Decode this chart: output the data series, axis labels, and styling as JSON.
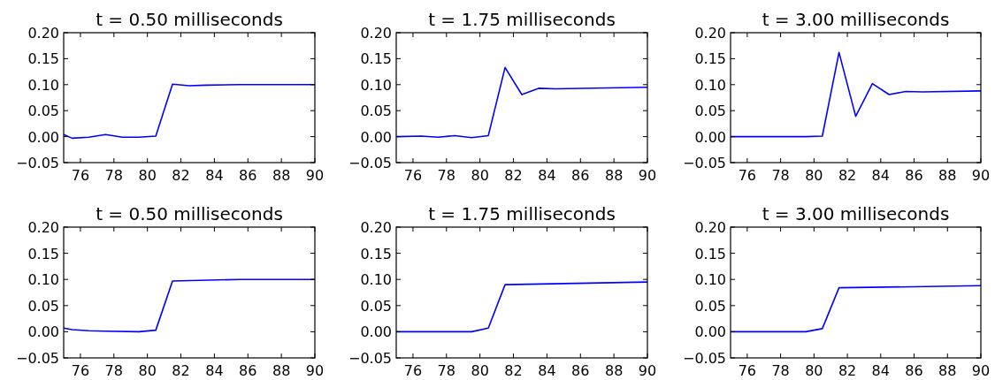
{
  "chart_data": [
    {
      "type": "line",
      "title": "t = 0.50 milliseconds",
      "x": [
        75,
        75.5,
        76.5,
        77.5,
        78.5,
        79.5,
        80.5,
        81.5,
        82.5,
        83.5,
        85.5,
        90
      ],
      "series": [
        {
          "color": "#0000ff",
          "values": [
            0.004,
            -0.003,
            -0.001,
            0.004,
            -0.001,
            -0.001,
            0.001,
            0.101,
            0.098,
            0.099,
            0.1,
            0.1
          ]
        }
      ],
      "xlim": [
        75,
        90
      ],
      "ylim": [
        -0.05,
        0.2
      ],
      "xticks": [
        76,
        78,
        80,
        82,
        84,
        86,
        88,
        90
      ],
      "yticks": [
        {
          "value": -0.05,
          "label": "−0.05"
        },
        {
          "value": 0,
          "label": "0.00"
        },
        {
          "value": 0.05,
          "label": "0.05"
        },
        {
          "value": 0.1,
          "label": "0.10"
        },
        {
          "value": 0.15,
          "label": "0.15"
        },
        {
          "value": 0.2,
          "label": "0.20"
        }
      ]
    },
    {
      "type": "line",
      "title": "t = 1.75 milliseconds",
      "x": [
        75,
        76.5,
        77.5,
        78.5,
        79.5,
        80.5,
        81.5,
        82.5,
        83.5,
        84.5,
        90
      ],
      "series": [
        {
          "color": "#0000ff",
          "values": [
            0,
            0.001,
            -0.001,
            0.002,
            -0.002,
            0.002,
            0.133,
            0.081,
            0.093,
            0.092,
            0.095
          ]
        }
      ],
      "xlim": [
        75,
        90
      ],
      "ylim": [
        -0.05,
        0.2
      ],
      "xticks": [
        76,
        78,
        80,
        82,
        84,
        86,
        88,
        90
      ],
      "yticks": [
        {
          "value": -0.05,
          "label": "−0.05"
        },
        {
          "value": 0,
          "label": "0.00"
        },
        {
          "value": 0.05,
          "label": "0.05"
        },
        {
          "value": 0.1,
          "label": "0.10"
        },
        {
          "value": 0.15,
          "label": "0.15"
        },
        {
          "value": 0.2,
          "label": "0.20"
        }
      ]
    },
    {
      "type": "line",
      "title": "t = 3.00 milliseconds",
      "x": [
        75,
        79.5,
        80.5,
        81.5,
        82.5,
        83.5,
        84.5,
        85.5,
        86.5,
        90
      ],
      "series": [
        {
          "color": "#0000ff",
          "values": [
            0,
            0,
            0.001,
            0.162,
            0.039,
            0.102,
            0.081,
            0.087,
            0.086,
            0.088
          ]
        }
      ],
      "xlim": [
        75,
        90
      ],
      "ylim": [
        -0.05,
        0.2
      ],
      "xticks": [
        76,
        78,
        80,
        82,
        84,
        86,
        88,
        90
      ],
      "yticks": [
        {
          "value": -0.05,
          "label": "−0.05"
        },
        {
          "value": 0,
          "label": "0.00"
        },
        {
          "value": 0.05,
          "label": "0.05"
        },
        {
          "value": 0.1,
          "label": "0.10"
        },
        {
          "value": 0.15,
          "label": "0.15"
        },
        {
          "value": 0.2,
          "label": "0.20"
        }
      ]
    },
    {
      "type": "line",
      "title": "t = 0.50 milliseconds",
      "x": [
        75,
        75.5,
        76.5,
        77.5,
        79.5,
        80.5,
        81.5,
        85.5,
        90
      ],
      "series": [
        {
          "color": "#0000ff",
          "values": [
            0.007,
            0.004,
            0.002,
            0.001,
            0,
            0.003,
            0.097,
            0.1,
            0.1
          ]
        }
      ],
      "xlim": [
        75,
        90
      ],
      "ylim": [
        -0.05,
        0.2
      ],
      "xticks": [
        76,
        78,
        80,
        82,
        84,
        86,
        88,
        90
      ],
      "yticks": [
        {
          "value": -0.05,
          "label": "−0.05"
        },
        {
          "value": 0,
          "label": "0.00"
        },
        {
          "value": 0.05,
          "label": "0.05"
        },
        {
          "value": 0.1,
          "label": "0.10"
        },
        {
          "value": 0.15,
          "label": "0.15"
        },
        {
          "value": 0.2,
          "label": "0.20"
        }
      ]
    },
    {
      "type": "line",
      "title": "t = 1.75 milliseconds",
      "x": [
        75,
        79.5,
        80.5,
        81.5,
        90
      ],
      "series": [
        {
          "color": "#0000ff",
          "values": [
            0,
            0,
            0.007,
            0.09,
            0.095
          ]
        }
      ],
      "xlim": [
        75,
        90
      ],
      "ylim": [
        -0.05,
        0.2
      ],
      "xticks": [
        76,
        78,
        80,
        82,
        84,
        86,
        88,
        90
      ],
      "yticks": [
        {
          "value": -0.05,
          "label": "−0.05"
        },
        {
          "value": 0,
          "label": "0.00"
        },
        {
          "value": 0.05,
          "label": "0.05"
        },
        {
          "value": 0.1,
          "label": "0.10"
        },
        {
          "value": 0.15,
          "label": "0.15"
        },
        {
          "value": 0.2,
          "label": "0.20"
        }
      ]
    },
    {
      "type": "line",
      "title": "t = 3.00 milliseconds",
      "x": [
        75,
        79.5,
        80.5,
        81.5,
        90
      ],
      "series": [
        {
          "color": "#0000ff",
          "values": [
            0,
            0,
            0.006,
            0.084,
            0.088
          ]
        }
      ],
      "xlim": [
        75,
        90
      ],
      "ylim": [
        -0.05,
        0.2
      ],
      "xticks": [
        76,
        78,
        80,
        82,
        84,
        86,
        88,
        90
      ],
      "yticks": [
        {
          "value": -0.05,
          "label": "−0.05"
        },
        {
          "value": 0,
          "label": "0.00"
        },
        {
          "value": 0.05,
          "label": "0.05"
        },
        {
          "value": 0.1,
          "label": "0.10"
        },
        {
          "value": 0.15,
          "label": "0.15"
        },
        {
          "value": 0.2,
          "label": "0.20"
        }
      ]
    }
  ]
}
